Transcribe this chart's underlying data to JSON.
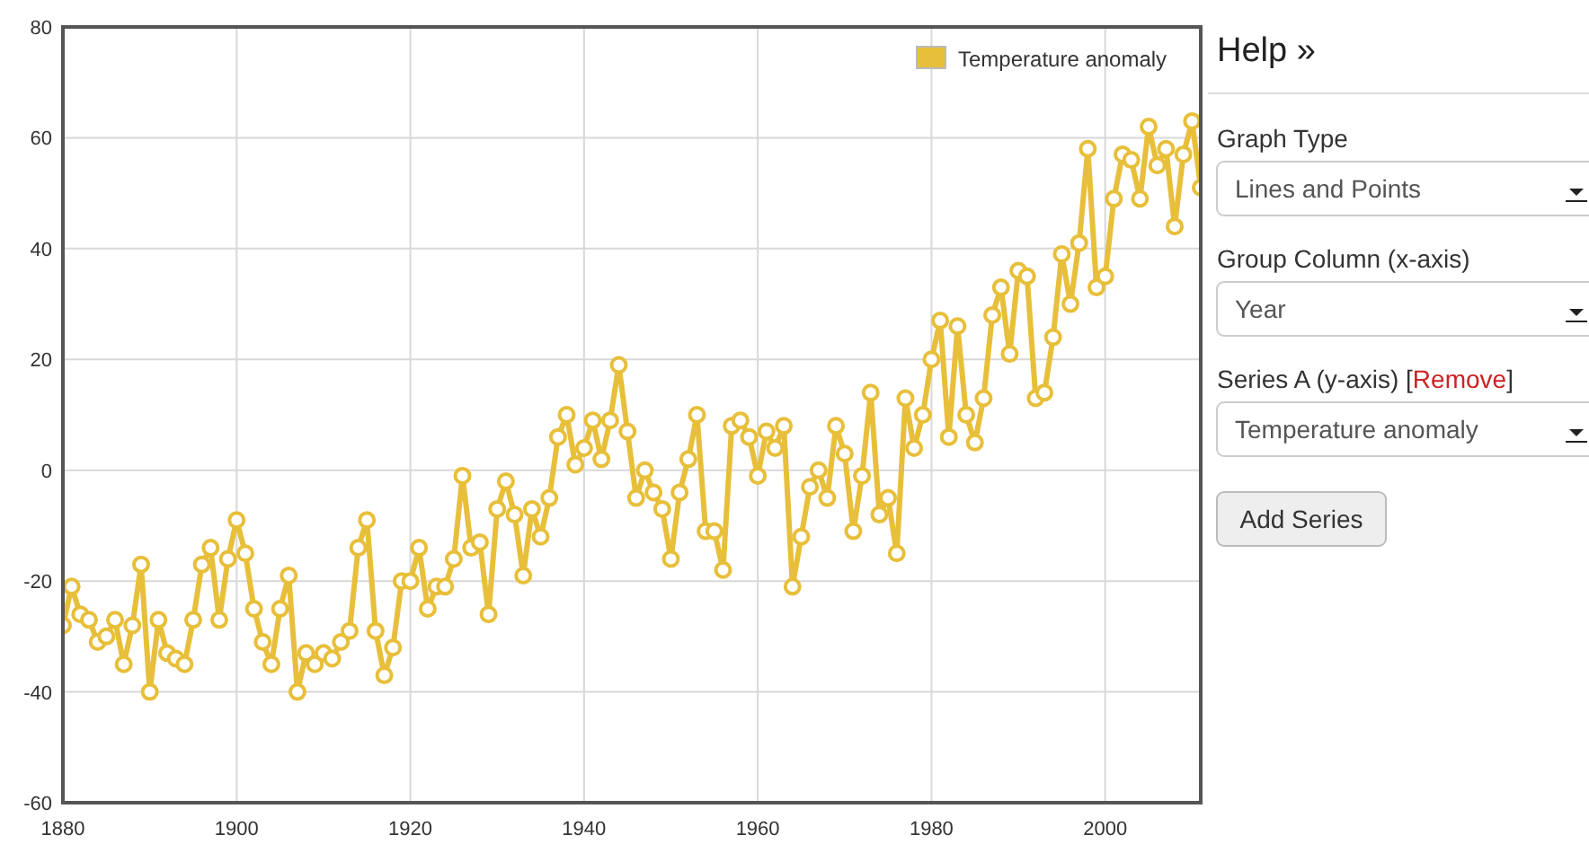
{
  "chart_data": [
    {
      "type": "line",
      "x": [
        1880,
        1881,
        1882,
        1883,
        1884,
        1885,
        1886,
        1887,
        1888,
        1889,
        1890,
        1891,
        1892,
        1893,
        1894,
        1895,
        1896,
        1897,
        1898,
        1899,
        1900,
        1901,
        1902,
        1903,
        1904,
        1905,
        1906,
        1907,
        1908,
        1909,
        1910,
        1911,
        1912,
        1913,
        1914,
        1915,
        1916,
        1917,
        1918,
        1919,
        1920,
        1921,
        1922,
        1923,
        1924,
        1925,
        1926,
        1927,
        1928,
        1929,
        1930,
        1931,
        1932,
        1933,
        1934,
        1935,
        1936,
        1937,
        1938,
        1939,
        1940,
        1941,
        1942,
        1943,
        1944,
        1945,
        1946,
        1947,
        1948,
        1949,
        1950,
        1951,
        1952,
        1953,
        1954,
        1955,
        1956,
        1957,
        1958,
        1959,
        1960,
        1961,
        1962,
        1963,
        1964,
        1965,
        1966,
        1967,
        1968,
        1969,
        1970,
        1971,
        1972,
        1973,
        1974,
        1975,
        1976,
        1977,
        1978,
        1979,
        1980,
        1981,
        1982,
        1983,
        1984,
        1985,
        1986,
        1987,
        1988,
        1989,
        1990,
        1991,
        1992,
        1993,
        1994,
        1995,
        1996,
        1997,
        1998,
        1999,
        2000,
        2001,
        2002,
        2003,
        2004,
        2005,
        2006,
        2007,
        2008,
        2009,
        2010,
        2011
      ],
      "series": [
        {
          "name": "Temperature anomaly",
          "color": "#e8bf3a",
          "values": [
            -28,
            -21,
            -26,
            -27,
            -31,
            -30,
            -27,
            -35,
            -28,
            -17,
            -40,
            -27,
            -33,
            -34,
            -35,
            -27,
            -17,
            -14,
            -27,
            -16,
            -9,
            -15,
            -25,
            -31,
            -35,
            -25,
            -19,
            -40,
            -33,
            -35,
            -33,
            -34,
            -31,
            -29,
            -14,
            -9,
            -29,
            -37,
            -32,
            -20,
            -20,
            -14,
            -25,
            -21,
            -21,
            -16,
            -1,
            -14,
            -13,
            -26,
            -7,
            -2,
            -8,
            -19,
            -7,
            -12,
            -5,
            6,
            10,
            1,
            4,
            9,
            2,
            9,
            19,
            7,
            -5,
            0,
            -4,
            -7,
            -16,
            -4,
            2,
            10,
            -11,
            -11,
            -18,
            8,
            9,
            6,
            -1,
            7,
            4,
            8,
            -21,
            -12,
            -3,
            0,
            -5,
            8,
            3,
            -11,
            -1,
            14,
            -8,
            -5,
            -15,
            13,
            4,
            10,
            20,
            27,
            6,
            26,
            10,
            5,
            13,
            28,
            33,
            21,
            36,
            35,
            13,
            14,
            24,
            39,
            30,
            41,
            58,
            33,
            35,
            49,
            57,
            56,
            49,
            62,
            55,
            58,
            44,
            57,
            63,
            51
          ]
        }
      ],
      "xlim": [
        1880,
        2011
      ],
      "ylim": [
        -60,
        80
      ],
      "xticks": [
        1880,
        1900,
        1920,
        1940,
        1960,
        1980,
        2000
      ],
      "yticks": [
        -60,
        -40,
        -20,
        0,
        20,
        40,
        60,
        80
      ],
      "grid": true,
      "legend": "top right",
      "marker": "circle",
      "line_style": "solid"
    },
    {
      "type": "other",
      "title": "Help »",
      "annotations": [
        "Graph Type",
        "Lines and Points",
        "Group Column (x-axis)",
        "Year",
        "Series A (y-axis) [",
        "Remove",
        "]",
        "Temperature anomaly",
        "Add Series"
      ]
    }
  ]
}
